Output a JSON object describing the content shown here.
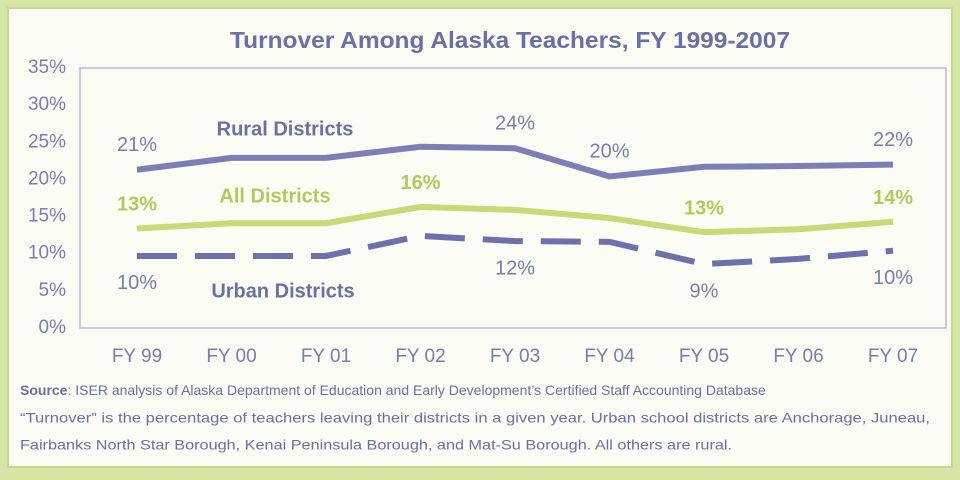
{
  "chart_data": {
    "type": "line",
    "title": "Turnover Among Alaska Teachers, FY 1999-2007",
    "categories": [
      "FY 99",
      "FY 00",
      "FY 01",
      "FY 02",
      "FY 03",
      "FY 04",
      "FY 05",
      "FY 06",
      "FY 07"
    ],
    "ylim": [
      0,
      35
    ],
    "yticks": [
      {
        "value": 0,
        "label": "0%"
      },
      {
        "value": 5,
        "label": "5%"
      },
      {
        "value": 10,
        "label": "10%"
      },
      {
        "value": 15,
        "label": "15%"
      },
      {
        "value": 20,
        "label": "20%"
      },
      {
        "value": 25,
        "label": "25%"
      },
      {
        "value": 30,
        "label": "30%"
      },
      {
        "value": 35,
        "label": "35%"
      }
    ],
    "series": [
      {
        "name": "Rural Districts",
        "color": "#7b7fb5",
        "values": [
          21.3,
          22.9,
          22.9,
          24.4,
          24.2,
          20.4,
          21.7,
          21.8,
          22.0
        ],
        "value_labels": [
          "21%",
          null,
          null,
          null,
          "24%",
          "20%",
          null,
          null,
          "22%"
        ]
      },
      {
        "name": "All Districts",
        "color": "#c9d975",
        "values": [
          13.4,
          14.1,
          14.1,
          16.3,
          15.9,
          14.8,
          12.9,
          13.3,
          14.3
        ],
        "value_labels": [
          "13%",
          null,
          null,
          "16%",
          null,
          null,
          "13%",
          null,
          "14%"
        ]
      },
      {
        "name": "Urban Districts",
        "color": "#6c70ab",
        "dashed": true,
        "values": [
          9.7,
          9.7,
          9.7,
          12.4,
          11.7,
          11.6,
          8.6,
          9.3,
          10.4
        ],
        "value_labels": [
          "10%",
          null,
          null,
          null,
          "12%",
          null,
          "9%",
          null,
          "10%"
        ]
      }
    ],
    "source_label": "Source",
    "source_text": ": ISER analysis of Alaska Department of Education and Early Development’s Certified Staff Accounting Database",
    "notes": [
      "“Turnover” is the percentage of teachers leaving their districts in a given year.  Urban school districts are Anchorage, Juneau,",
      "Fairbanks North Star Borough, Kenai Peninsula Borough, and Mat-Su Borough.  All others are rural."
    ]
  }
}
